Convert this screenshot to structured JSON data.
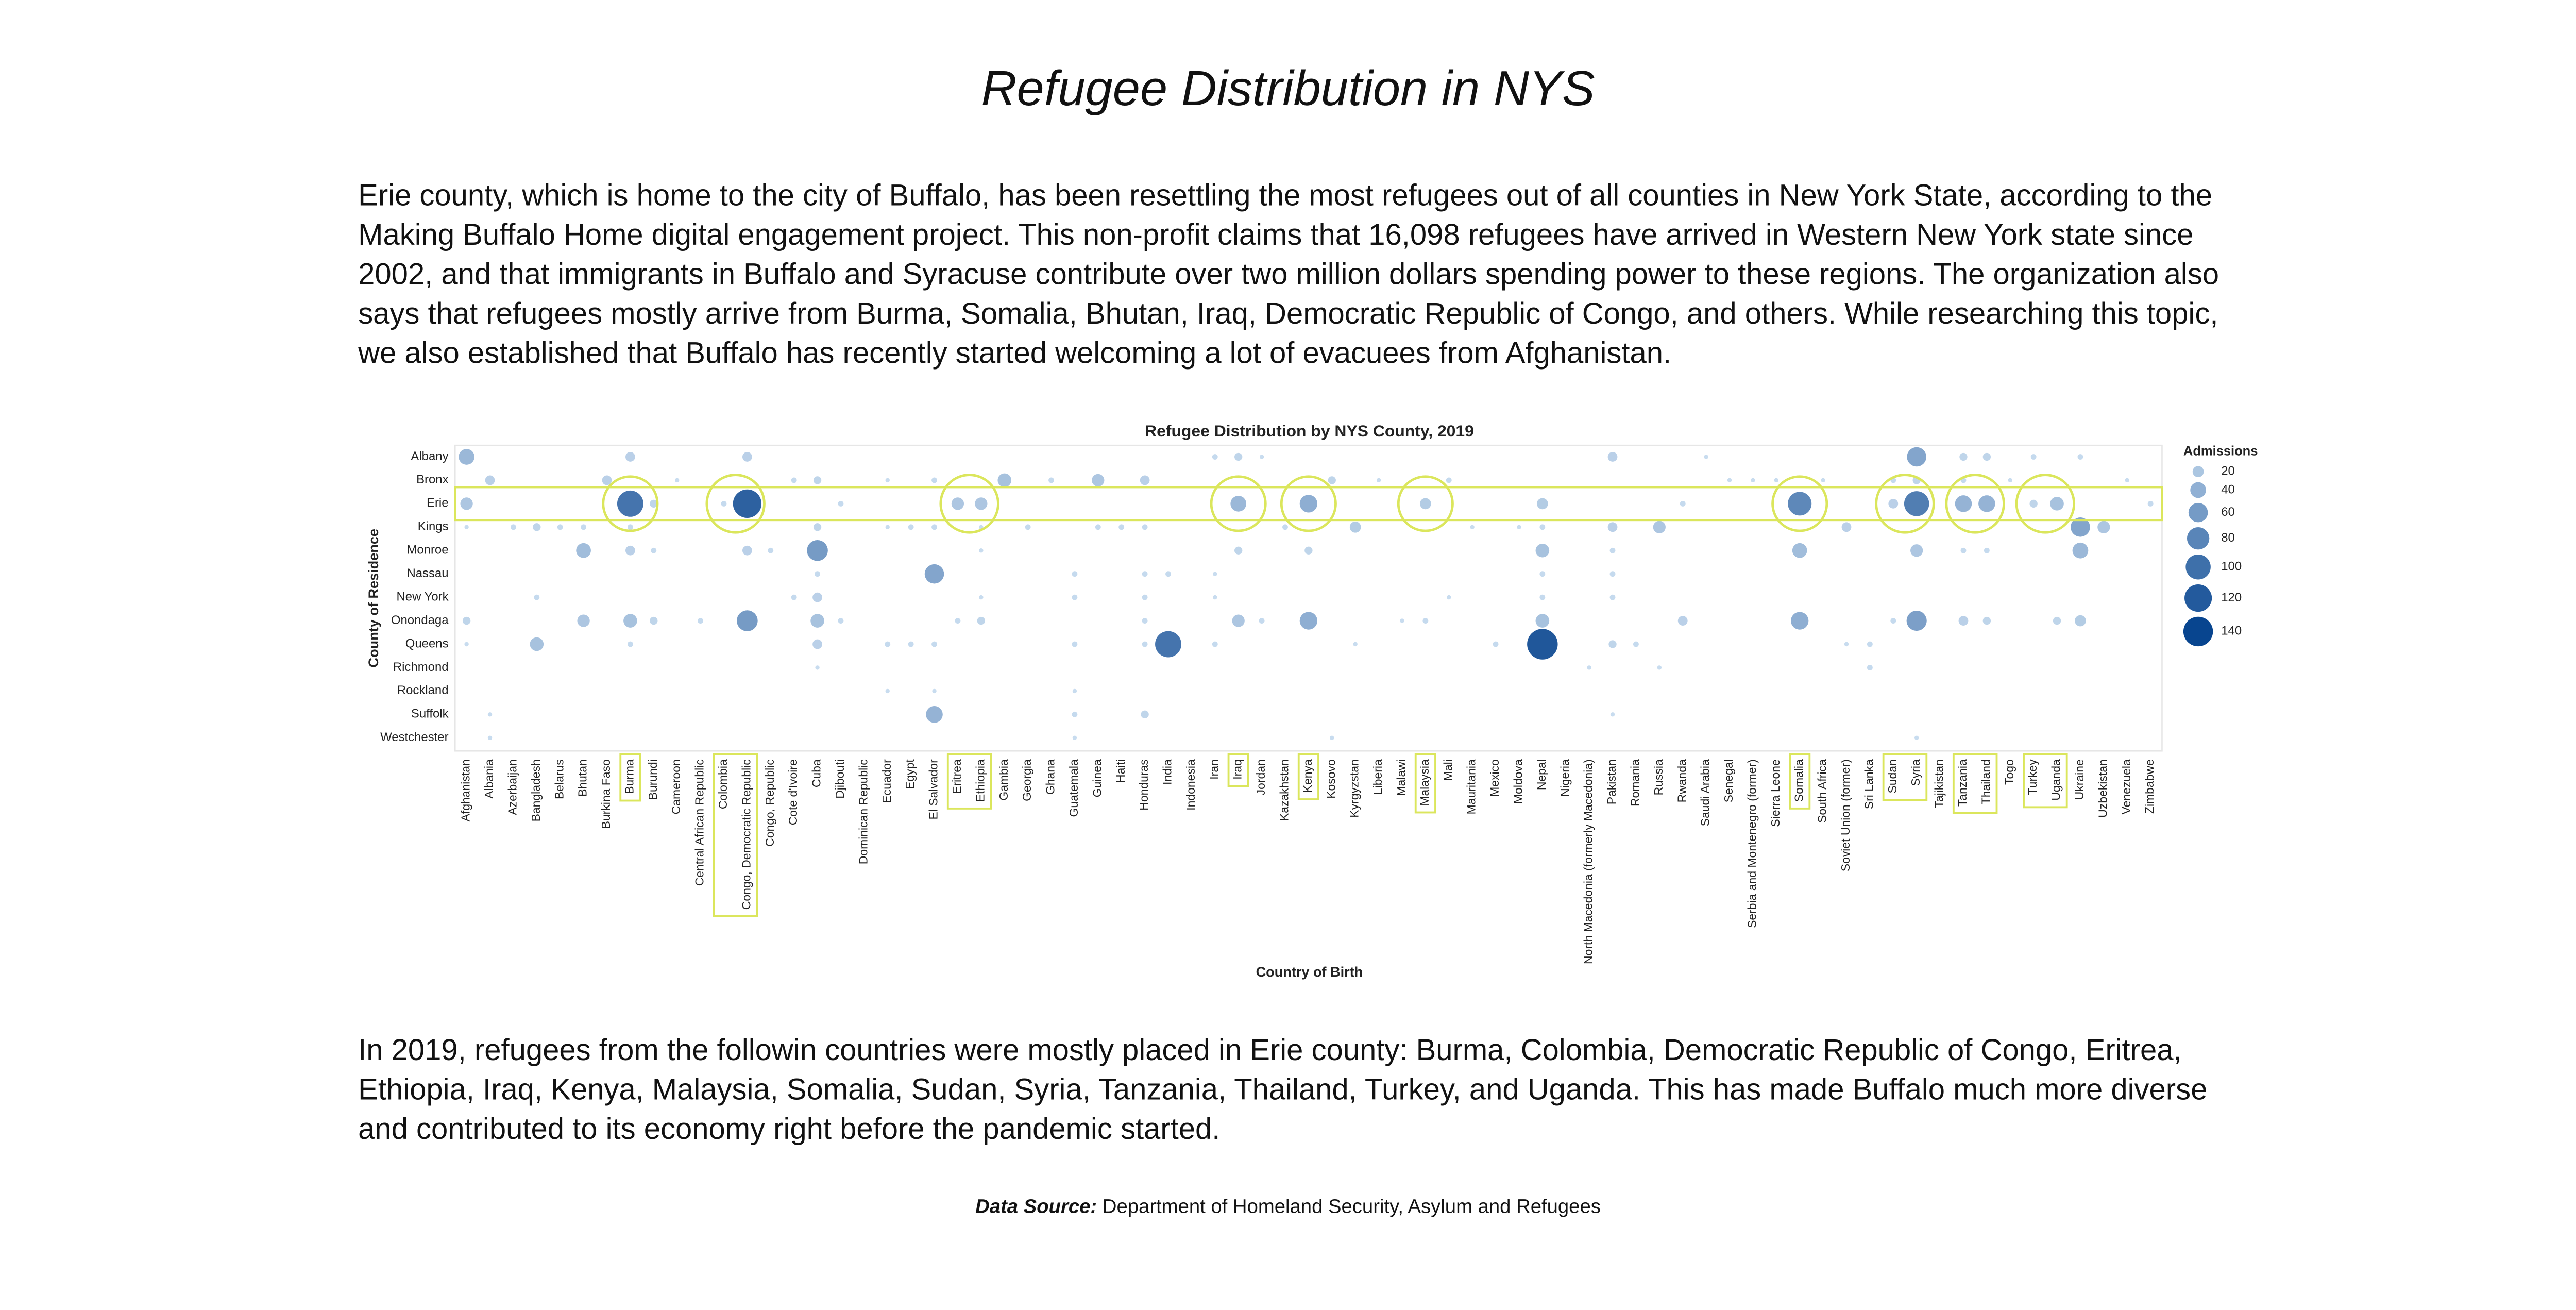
{
  "title": "Refugee Distribution in NYS",
  "paragraphs": [
    "Erie county, which is home to the city of Buffalo, has been resettling the most refugees out of all counties in New York State, according to the Making Buffalo Home digital engagement project. This non-profit claims that 16,098 refugees have arrived in Western New York state since 2002, and that immigrants in Buffalo and Syracuse contribute over two million dollars spending power to these regions. The organization also says that refugees mostly arrive from Burma, Somalia, Bhutan, Iraq, Democratic Republic of Congo, and others. While researching this topic, we also established that Buffalo has recently started welcoming a lot of evacuees from Afghanistan.",
    "In 2019, refugees from the followin countries were mostly placed in Erie county: Burma, Colombia, Democratic Republic of Congo, Eritrea, Ethiopia, Iraq, Kenya, Malaysia, Somalia, Sudan, Syria, Tanzania, Thailand, Turkey, and Uganda. This has made Buffalo much more diverse and contributed to its economy right before the pandemic started."
  ],
  "source": {
    "label": "Data Source:",
    "text": "Department of Homeland Security, Asylum and Refugees"
  },
  "chart_data": {
    "type": "bubble",
    "title": "Refugee Distribution by NYS County, 2019",
    "x_label": "Country of Birth",
    "y_label": "County of Residence",
    "legend_title": "Admissions",
    "size_legend": [
      20,
      40,
      60,
      80,
      100,
      120,
      140
    ],
    "color_low": "#c6dbef",
    "color_high": "#08458f",
    "highlight": {
      "row": "Erie",
      "columns": [
        "Burma",
        "Colombia",
        "Congo, Democratic Republic",
        "Eritrea",
        "Ethiopia",
        "Iraq",
        "Kenya",
        "Malaysia",
        "Somalia",
        "Sudan",
        "Syria",
        "Tanzania",
        "Thailand",
        "Turkey",
        "Uganda"
      ]
    },
    "categories": [
      "Afghanistan",
      "Albania",
      "Azerbaijan",
      "Bangladesh",
      "Belarus",
      "Bhutan",
      "Burkina Faso",
      "Burma",
      "Burundi",
      "Cameroon",
      "Central African Republic",
      "Colombia",
      "Congo, Democratic Republic",
      "Congo, Republic",
      "Cote d'Ivoire",
      "Cuba",
      "Djibouti",
      "Dominican Republic",
      "Ecuador",
      "Egypt",
      "El Salvador",
      "Eritrea",
      "Ethiopia",
      "Gambia",
      "Georgia",
      "Ghana",
      "Guatemala",
      "Guinea",
      "Haiti",
      "Honduras",
      "India",
      "Indonesia",
      "Iran",
      "Iraq",
      "Jordan",
      "Kazakhstan",
      "Kenya",
      "Kosovo",
      "Kyrgyzstan",
      "Liberia",
      "Malawi",
      "Malaysia",
      "Mali",
      "Mauritania",
      "Mexico",
      "Moldova",
      "Nepal",
      "Nigeria",
      "North Macedonia (formerly Macedonia)",
      "Pakistan",
      "Romania",
      "Russia",
      "Rwanda",
      "Saudi Arabia",
      "Senegal",
      "Serbia and Montenegro (former)",
      "Sierra Leone",
      "Somalia",
      "South Africa",
      "Soviet Union (former)",
      "Sri Lanka",
      "Sudan",
      "Syria",
      "Tajikistan",
      "Tanzania",
      "Thailand",
      "Togo",
      "Turkey",
      "Uganda",
      "Ukraine",
      "Uzbekistan",
      "Venezuela",
      "Zimbabwe"
    ],
    "series": [
      {
        "name": "Albany",
        "values": [
          40,
          null,
          null,
          null,
          null,
          null,
          null,
          15,
          null,
          null,
          null,
          null,
          15,
          null,
          null,
          null,
          null,
          null,
          null,
          null,
          null,
          null,
          null,
          null,
          null,
          null,
          null,
          null,
          null,
          null,
          null,
          null,
          5,
          10,
          3,
          null,
          null,
          null,
          null,
          null,
          null,
          null,
          null,
          null,
          null,
          null,
          null,
          null,
          null,
          15,
          null,
          null,
          null,
          3,
          null,
          null,
          null,
          null,
          null,
          null,
          null,
          null,
          60,
          null,
          10,
          10,
          null,
          5,
          null,
          5,
          null,
          null,
          null
        ]
      },
      {
        "name": "Bronx",
        "values": [
          null,
          15,
          null,
          null,
          null,
          null,
          15,
          null,
          null,
          3,
          null,
          null,
          null,
          null,
          5,
          10,
          null,
          null,
          3,
          null,
          5,
          null,
          null,
          30,
          null,
          5,
          null,
          25,
          null,
          15,
          null,
          null,
          null,
          null,
          null,
          null,
          null,
          10,
          null,
          3,
          null,
          null,
          5,
          null,
          null,
          null,
          null,
          null,
          null,
          null,
          null,
          null,
          null,
          null,
          3,
          3,
          3,
          null,
          3,
          null,
          null,
          5,
          10,
          null,
          5,
          null,
          3,
          null,
          null,
          null,
          null,
          3,
          null
        ]
      },
      {
        "name": "Erie",
        "values": [
          25,
          null,
          null,
          null,
          null,
          null,
          null,
          110,
          10,
          null,
          null,
          5,
          130,
          null,
          null,
          null,
          5,
          null,
          null,
          null,
          null,
          25,
          25,
          null,
          null,
          null,
          null,
          null,
          null,
          null,
          null,
          null,
          null,
          40,
          null,
          null,
          50,
          null,
          null,
          null,
          null,
          20,
          null,
          null,
          null,
          null,
          20,
          null,
          null,
          null,
          null,
          null,
          5,
          null,
          null,
          null,
          null,
          90,
          null,
          null,
          null,
          15,
          100,
          null,
          45,
          45,
          null,
          10,
          30,
          null,
          null,
          null,
          5
        ]
      },
      {
        "name": "Kings",
        "values": [
          3,
          null,
          5,
          10,
          5,
          5,
          null,
          5,
          null,
          null,
          null,
          null,
          null,
          null,
          null,
          10,
          null,
          null,
          3,
          5,
          5,
          null,
          3,
          null,
          5,
          null,
          null,
          5,
          5,
          5,
          null,
          null,
          null,
          null,
          null,
          5,
          null,
          null,
          20,
          null,
          null,
          null,
          null,
          3,
          null,
          3,
          5,
          null,
          null,
          15,
          null,
          25,
          null,
          null,
          null,
          null,
          null,
          null,
          null,
          15,
          null,
          null,
          null,
          null,
          null,
          null,
          null,
          null,
          null,
          60,
          25,
          null,
          null
        ]
      },
      {
        "name": "Monroe",
        "values": [
          null,
          null,
          null,
          null,
          null,
          35,
          null,
          15,
          5,
          null,
          null,
          null,
          15,
          5,
          null,
          70,
          null,
          null,
          null,
          null,
          null,
          null,
          3,
          null,
          null,
          null,
          null,
          null,
          null,
          null,
          null,
          null,
          null,
          10,
          null,
          null,
          10,
          null,
          null,
          null,
          null,
          null,
          null,
          null,
          null,
          null,
          30,
          null,
          null,
          5,
          null,
          null,
          null,
          null,
          null,
          null,
          null,
          35,
          null,
          null,
          null,
          null,
          25,
          null,
          5,
          5,
          null,
          null,
          null,
          40,
          null,
          null,
          null
        ]
      },
      {
        "name": "Nassau",
        "values": [
          null,
          null,
          null,
          null,
          null,
          null,
          null,
          null,
          null,
          null,
          null,
          null,
          null,
          null,
          null,
          5,
          null,
          null,
          null,
          null,
          60,
          null,
          null,
          null,
          null,
          null,
          5,
          null,
          null,
          5,
          5,
          null,
          3,
          null,
          null,
          null,
          null,
          null,
          null,
          null,
          null,
          null,
          null,
          null,
          null,
          null,
          5,
          null,
          null,
          5,
          null,
          null,
          null,
          null,
          null,
          null,
          null,
          null,
          null,
          null,
          null,
          null,
          null,
          null,
          null,
          null,
          null,
          null,
          null,
          null,
          null,
          null,
          null
        ]
      },
      {
        "name": "New York",
        "values": [
          null,
          null,
          null,
          5,
          null,
          null,
          null,
          null,
          null,
          null,
          null,
          null,
          null,
          null,
          5,
          15,
          null,
          null,
          null,
          null,
          null,
          null,
          3,
          null,
          null,
          null,
          5,
          null,
          null,
          5,
          null,
          null,
          3,
          null,
          null,
          null,
          null,
          null,
          null,
          null,
          null,
          null,
          3,
          null,
          null,
          null,
          5,
          null,
          null,
          5,
          null,
          null,
          null,
          null,
          null,
          null,
          null,
          null,
          null,
          null,
          null,
          null,
          null,
          null,
          null,
          null,
          null,
          null,
          null,
          null,
          null,
          null,
          null
        ]
      },
      {
        "name": "Onondaga",
        "values": [
          10,
          null,
          null,
          null,
          null,
          25,
          null,
          30,
          10,
          null,
          5,
          null,
          70,
          null,
          null,
          30,
          5,
          null,
          null,
          null,
          null,
          5,
          10,
          null,
          null,
          null,
          null,
          null,
          null,
          5,
          null,
          null,
          null,
          25,
          5,
          null,
          50,
          null,
          null,
          null,
          3,
          5,
          null,
          null,
          null,
          null,
          30,
          null,
          null,
          null,
          null,
          null,
          15,
          null,
          null,
          null,
          null,
          50,
          null,
          null,
          null,
          5,
          65,
          null,
          15,
          10,
          null,
          null,
          10,
          20,
          null,
          null,
          null
        ]
      },
      {
        "name": "Queens",
        "values": [
          3,
          null,
          null,
          30,
          null,
          null,
          null,
          5,
          null,
          null,
          null,
          null,
          null,
          null,
          null,
          15,
          null,
          null,
          5,
          5,
          5,
          null,
          null,
          null,
          null,
          null,
          5,
          null,
          null,
          5,
          110,
          null,
          5,
          null,
          null,
          null,
          null,
          null,
          3,
          null,
          null,
          null,
          null,
          null,
          5,
          null,
          150,
          null,
          null,
          10,
          5,
          null,
          null,
          null,
          null,
          null,
          null,
          null,
          null,
          3,
          5,
          null,
          null,
          null,
          null,
          null,
          null,
          null,
          null,
          null,
          null,
          null,
          null
        ]
      },
      {
        "name": "Richmond",
        "values": [
          null,
          null,
          null,
          null,
          null,
          null,
          null,
          null,
          null,
          null,
          null,
          null,
          null,
          null,
          null,
          3,
          null,
          null,
          null,
          null,
          null,
          null,
          null,
          null,
          null,
          null,
          null,
          null,
          null,
          null,
          null,
          null,
          null,
          null,
          null,
          null,
          null,
          null,
          null,
          null,
          null,
          null,
          null,
          null,
          null,
          null,
          null,
          null,
          3,
          null,
          null,
          3,
          null,
          null,
          null,
          null,
          null,
          null,
          null,
          null,
          5,
          null,
          null,
          null,
          null,
          null,
          null,
          null,
          null,
          null,
          null,
          null,
          null
        ]
      },
      {
        "name": "Rockland",
        "values": [
          null,
          null,
          null,
          null,
          null,
          null,
          null,
          null,
          null,
          null,
          null,
          null,
          null,
          null,
          null,
          null,
          null,
          null,
          3,
          null,
          3,
          null,
          null,
          null,
          null,
          null,
          3,
          null,
          null,
          null,
          null,
          null,
          null,
          null,
          null,
          null,
          null,
          null,
          null,
          null,
          null,
          null,
          null,
          null,
          null,
          null,
          null,
          null,
          null,
          null,
          null,
          null,
          null,
          null,
          null,
          null,
          null,
          null,
          null,
          null,
          null,
          null,
          null,
          null,
          null,
          null,
          null,
          null,
          null,
          null,
          null,
          null,
          null
        ]
      },
      {
        "name": "Suffolk",
        "values": [
          null,
          3,
          null,
          null,
          null,
          null,
          null,
          null,
          null,
          null,
          null,
          null,
          null,
          null,
          null,
          null,
          null,
          null,
          null,
          null,
          45,
          null,
          null,
          null,
          null,
          null,
          5,
          null,
          null,
          10,
          null,
          null,
          null,
          null,
          null,
          null,
          null,
          null,
          null,
          null,
          null,
          null,
          null,
          null,
          null,
          null,
          null,
          null,
          null,
          3,
          null,
          null,
          null,
          null,
          null,
          null,
          null,
          null,
          null,
          null,
          null,
          null,
          null,
          null,
          null,
          null,
          null,
          null,
          null,
          null,
          null,
          null,
          null
        ]
      },
      {
        "name": "Westchester",
        "values": [
          null,
          3,
          null,
          null,
          null,
          null,
          null,
          null,
          null,
          null,
          null,
          null,
          null,
          null,
          null,
          null,
          null,
          null,
          null,
          null,
          null,
          null,
          null,
          null,
          null,
          null,
          3,
          null,
          null,
          null,
          null,
          null,
          null,
          null,
          null,
          null,
          null,
          3,
          null,
          null,
          null,
          null,
          null,
          null,
          null,
          null,
          null,
          null,
          null,
          null,
          null,
          null,
          null,
          null,
          null,
          null,
          null,
          null,
          null,
          null,
          null,
          null,
          3,
          null,
          null,
          null,
          null,
          null,
          null,
          null,
          null,
          null,
          null
        ]
      }
    ]
  }
}
